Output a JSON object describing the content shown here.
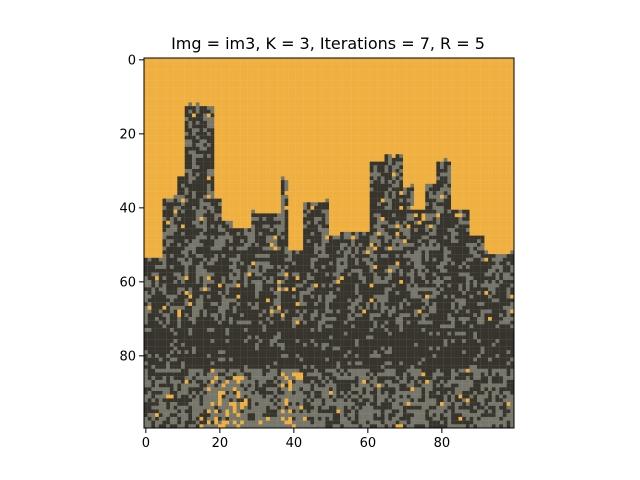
{
  "title": "Img = im3, K = 3, Iterations = 7, R = 5",
  "palette": {
    "sky": "#f0b040",
    "dark": "#36342c",
    "mid": "#76766b"
  },
  "chart_data": {
    "type": "heatmap",
    "title": "Img = im3, K = 3, Iterations = 7, R = 5",
    "xlabel": "",
    "ylabel": "",
    "grid": false,
    "xlim": [
      -0.5,
      99.5
    ],
    "ylim": [
      99.5,
      -0.5
    ],
    "x_ticks": [
      0,
      20,
      40,
      60,
      80
    ],
    "y_ticks": [
      0,
      20,
      40,
      60,
      80
    ],
    "x_tick_labels": [
      "0",
      "20",
      "40",
      "60",
      "80"
    ],
    "y_tick_labels": [
      "0",
      "20",
      "40",
      "60",
      "80"
    ],
    "image_size": [
      100,
      100
    ],
    "clusters": 3
  }
}
